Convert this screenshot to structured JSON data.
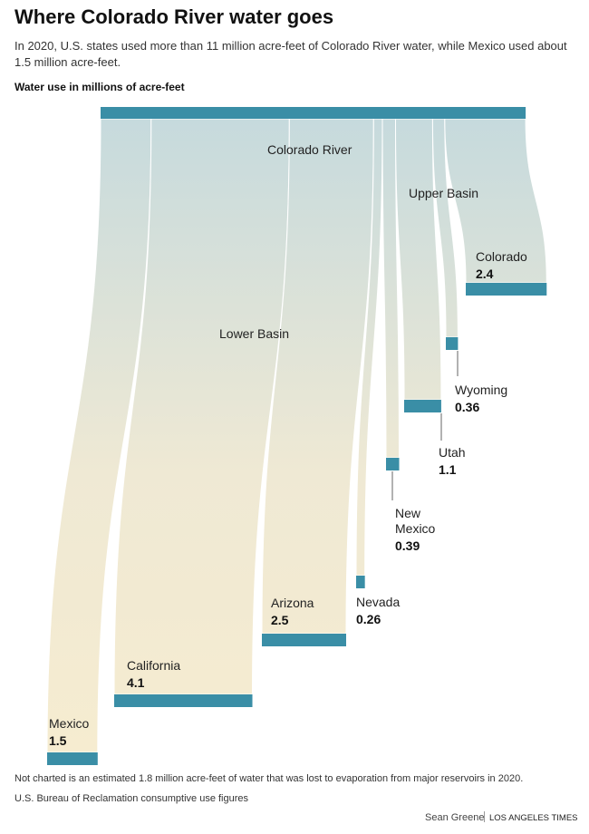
{
  "chart_data": {
    "type": "sankey",
    "title": "Where Colorado River water goes",
    "subtitle": "In 2020, U.S. states used more than 11 million acre-feet of Colorado River water, while Mexico used about 1.5 million acre-feet.",
    "axis_label": "Water use in millions of acre-feet",
    "source_node": "Colorado River",
    "groups": [
      "Upper Basin",
      "Lower Basin"
    ],
    "categories": [
      "Mexico",
      "California",
      "Arizona",
      "Nevada",
      "New Mexico",
      "Utah",
      "Wyoming",
      "Colorado"
    ],
    "values": [
      1.5,
      4.1,
      2.5,
      0.26,
      0.39,
      1.1,
      0.36,
      2.4
    ],
    "color": "#3a8ea6",
    "footnotes": [
      "Not charted is an estimated 1.8 million acre-feet of water that was lost to evaporation from major reservoirs in 2020.",
      "U.S. Bureau of Reclamation consumptive use figures"
    ],
    "credit": {
      "author": "Sean Greene",
      "outlet": "LOS ANGELES TIMES"
    }
  }
}
